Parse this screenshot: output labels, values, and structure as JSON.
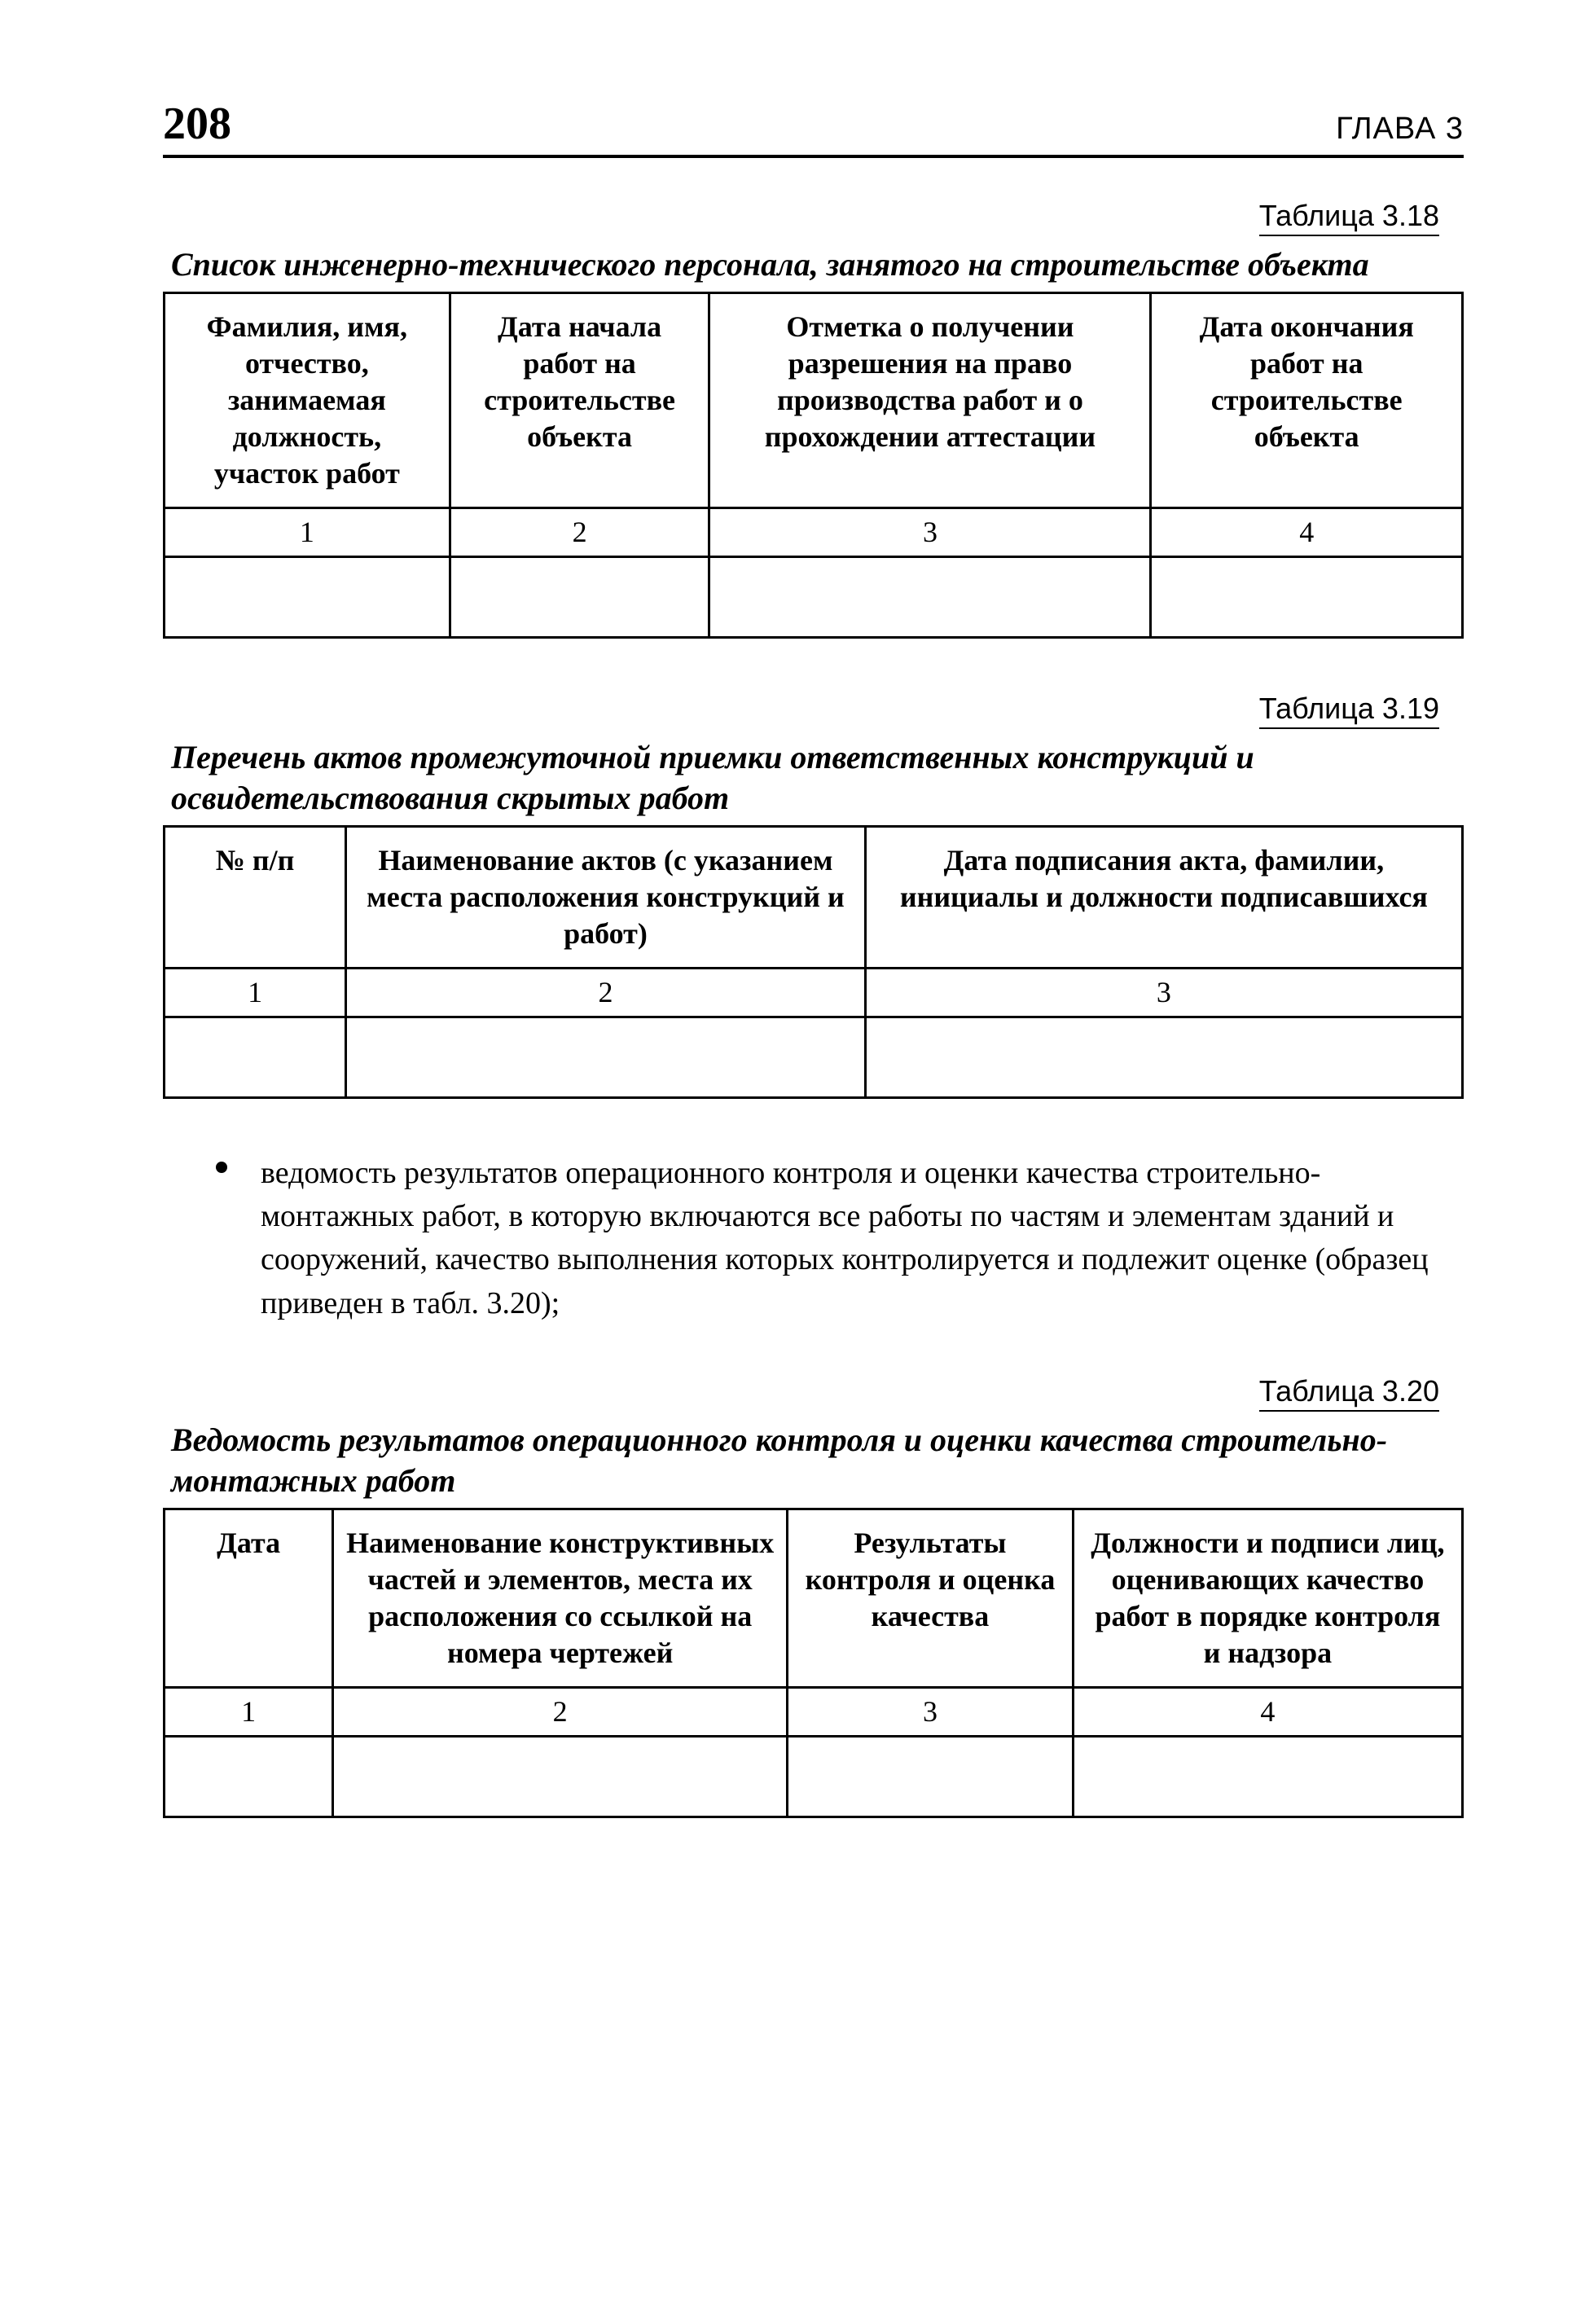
{
  "header": {
    "page_number": "208",
    "chapter": "ГЛАВА 3"
  },
  "colors": {
    "text": "#000000",
    "background": "#ffffff",
    "rule": "#000000"
  },
  "typography": {
    "serif_family": "Times New Roman",
    "sans_family": "Arial",
    "pagenum_fontsize": 56,
    "pagenum_weight": 700,
    "chapter_fontsize": 38,
    "label_fontsize": 36,
    "caption_fontsize": 40,
    "caption_style": "italic bold",
    "table_fontsize": 36,
    "body_fontsize": 38,
    "line_height": 1.3
  },
  "tables": [
    {
      "id": "t318",
      "label": "Таблица 3.18",
      "caption": "Список инженерно-технического персонала, занятого на строительстве объекта",
      "type": "table",
      "border_width": 3,
      "border_color": "#000000",
      "col_widths_pct": [
        22,
        20,
        34,
        24
      ],
      "columns": [
        "Фамилия, имя, отчество, занимаемая должность, участок работ",
        "Дата начала работ на строительстве объекта",
        "Отметка о получении разрешения на право производства работ и о прохождении аттестации",
        "Дата окончания работ на строительстве объекта"
      ],
      "number_row": [
        "1",
        "2",
        "3",
        "4"
      ],
      "data_rows": [
        [
          "",
          "",
          "",
          ""
        ]
      ]
    },
    {
      "id": "t319",
      "label": "Таблица 3.19",
      "caption": "Перечень актов промежуточной приемки ответственных конструкций и освидетельствования скрытых работ",
      "type": "table",
      "border_width": 3,
      "border_color": "#000000",
      "col_widths_pct": [
        14,
        40,
        46
      ],
      "columns": [
        "№ п/п",
        "Наименование актов (с указанием места расположения конструкций и работ)",
        "Дата подписания акта, фамилии, инициалы и должности подписавшихся"
      ],
      "number_row": [
        "1",
        "2",
        "3"
      ],
      "data_rows": [
        [
          "",
          "",
          ""
        ]
      ]
    },
    {
      "id": "t320",
      "label": "Таблица 3.20",
      "caption": "Ведомость результатов операционного контроля и оценки качества строительно-монтажных работ",
      "type": "table",
      "border_width": 3,
      "border_color": "#000000",
      "col_widths_pct": [
        13,
        35,
        22,
        30
      ],
      "columns": [
        "Дата",
        "Наименование конструктивных частей и элементов, места их расположения со ссылкой на номера чертежей",
        "Результаты контроля и оценка качества",
        "Должности и подписи лиц, оценивающих качество работ в порядке контроля и надзора"
      ],
      "number_row": [
        "1",
        "2",
        "3",
        "4"
      ],
      "data_rows": [
        [
          "",
          "",
          "",
          ""
        ]
      ]
    }
  ],
  "bullet_paragraph": "ведомость результатов операционного контроля и оценки качества строительно-монтажных работ, в которую включаются все работы по частям и элементам зданий и сооружений, качество выполнения которых контролируется и подлежит оценке (образец приведен в табл. 3.20);"
}
